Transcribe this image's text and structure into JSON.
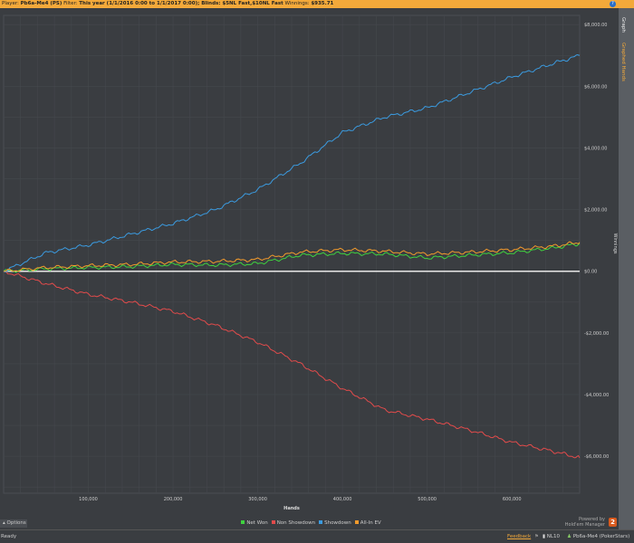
{
  "header": {
    "player_label": "Player:",
    "player": "Pb6a-Me4 (PS)",
    "filter_label": "Filter:",
    "filter": "This year (1/1/2016 0:00 to 1/1/2017 0:00); Blinds: $5NL Fast,$10NL Fast",
    "winnings_label": "Winnings:",
    "winnings": "$935.71",
    "help": "?"
  },
  "side_tabs": [
    "Graph",
    "Graphed Hands"
  ],
  "options_label": "Options",
  "powered": {
    "line1": "Powered by",
    "line2": "Hold'em Manager",
    "logo": "2"
  },
  "status": {
    "text": "Ready",
    "feedback": "Feedback",
    "stake": "NL10",
    "account": "Pb6a-Me4 (PokerStars)"
  },
  "chart_data": {
    "type": "line",
    "xlabel": "Hands",
    "ylabel": "Winnings",
    "xlim": [
      0,
      680000
    ],
    "ylim": [
      -7200,
      8300
    ],
    "xticks": [
      100000,
      200000,
      300000,
      400000,
      500000,
      600000
    ],
    "xtick_labels": [
      "100,000",
      "200,000",
      "300,000",
      "400,000",
      "500,000",
      "600,000"
    ],
    "yticks": [
      8000,
      6000,
      4000,
      2000,
      0,
      -2000,
      -4000,
      -6000
    ],
    "ytick_labels": [
      "$8,000.00",
      "$6,000.00",
      "$4,000.00",
      "$2,000.00",
      "$0.00",
      "-$2,000.00",
      "-$4,000.00",
      "-$6,000.00"
    ],
    "grid": true,
    "legend": "bottom",
    "y_axis_side": "right",
    "x": [
      0,
      50000,
      100000,
      150000,
      200000,
      250000,
      300000,
      350000,
      400000,
      450000,
      500000,
      550000,
      600000,
      650000,
      680000
    ],
    "series": [
      {
        "name": "Net Won",
        "color": "#3fd23f",
        "values": [
          0,
          80,
          120,
          150,
          220,
          200,
          250,
          520,
          580,
          560,
          430,
          520,
          600,
          760,
          900
        ]
      },
      {
        "name": "Non Showdown",
        "color": "#e24b4b",
        "values": [
          0,
          -400,
          -750,
          -1000,
          -1300,
          -1750,
          -2300,
          -3000,
          -3800,
          -4500,
          -4800,
          -5150,
          -5550,
          -5850,
          -6050
        ]
      },
      {
        "name": "Showdown",
        "color": "#3b9be0",
        "values": [
          0,
          600,
          850,
          1200,
          1550,
          2000,
          2650,
          3500,
          4500,
          5000,
          5300,
          5800,
          6300,
          6750,
          7000
        ]
      },
      {
        "name": "All-In EV",
        "color": "#f39a2c",
        "values": [
          0,
          120,
          180,
          220,
          300,
          320,
          380,
          620,
          700,
          650,
          560,
          620,
          700,
          820,
          940
        ]
      }
    ]
  }
}
